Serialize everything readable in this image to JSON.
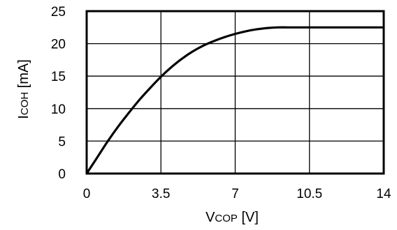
{
  "chart_data": {
    "type": "line",
    "title": "",
    "xlabel": {
      "main": "V",
      "sub": "COP",
      "unit": " [V]"
    },
    "ylabel": {
      "main": "I",
      "sub": "COH",
      "unit": " [mA]"
    },
    "xlim": [
      0,
      14
    ],
    "ylim": [
      0,
      25
    ],
    "xticks": [
      0,
      3.5,
      7,
      10.5,
      14
    ],
    "xtick_labels": [
      "0",
      "3.5",
      "7",
      "10.5",
      "14"
    ],
    "yticks": [
      0,
      5,
      10,
      15,
      20,
      25
    ],
    "ytick_labels": [
      "0",
      "5",
      "10",
      "15",
      "20",
      "25"
    ],
    "grid": true,
    "series": [
      {
        "color": "#000000",
        "x": [
          0,
          0.5,
          1,
          1.5,
          2,
          2.5,
          3,
          3.5,
          4,
          4.5,
          5,
          5.5,
          6,
          6.5,
          7,
          7.5,
          8,
          8.5,
          9,
          9.5,
          10,
          11,
          12,
          13,
          14
        ],
        "y": [
          0,
          2.5,
          5.0,
          7.3,
          9.4,
          11.4,
          13.2,
          14.9,
          16.4,
          17.7,
          18.8,
          19.7,
          20.4,
          21.0,
          21.5,
          21.9,
          22.2,
          22.4,
          22.5,
          22.5,
          22.5,
          22.5,
          22.5,
          22.5,
          22.5
        ]
      }
    ]
  }
}
